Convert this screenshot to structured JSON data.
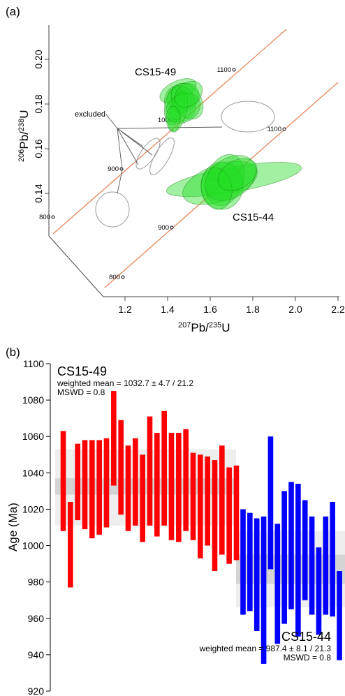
{
  "chart_data": [
    {
      "type": "scatter",
      "panel_label": "(a)",
      "x_axis": {
        "min": 1.2,
        "max": 2.2,
        "ticks": [
          "1.2",
          "1.4",
          "1.6",
          "1.8",
          "2.0",
          "2.2"
        ]
      },
      "y_axis": {
        "min": 0.14,
        "max": 0.2,
        "ticks": [
          "0.14",
          "0.16",
          "0.18",
          "0.20"
        ]
      },
      "concordia_ages": [
        {
          "curve": 1,
          "label": "800",
          "x": 1.19,
          "y": 0.133
        },
        {
          "curve": 1,
          "label": "900",
          "x": 1.39,
          "y": 0.15
        },
        {
          "curve": 1,
          "label": "1000",
          "x": 1.61,
          "y": 0.167
        },
        {
          "curve": 1,
          "label": "1100",
          "x": 1.84,
          "y": 0.186
        },
        {
          "curve": 2,
          "label": "800",
          "x": 1.19,
          "y": 0.133
        },
        {
          "curve": 2,
          "label": "900",
          "x": 1.42,
          "y": 0.15
        },
        {
          "curve": 2,
          "label": "1000",
          "x": 1.66,
          "y": 0.167
        },
        {
          "curve": 2,
          "label": "1100",
          "x": 1.95,
          "y": 0.186
        }
      ],
      "groups": [
        {
          "name": "CS15-49",
          "color": "#22dd22",
          "center_x": 1.45,
          "center_y": 0.17
        },
        {
          "name": "CS15-44",
          "color": "#22dd22",
          "center_x": 1.67,
          "center_y": 0.145
        }
      ],
      "annotation": "excluded",
      "excluded_color": "#999999"
    },
    {
      "type": "bar",
      "panel_label": "(b)",
      "ylabel": "Age (Ma)",
      "ylim": [
        920,
        1100
      ],
      "yticks": [
        "1100",
        "1080",
        "1060",
        "1040",
        "1020",
        "1000",
        "980",
        "960",
        "940",
        "920"
      ],
      "series": [
        {
          "name": "CS15-49",
          "color": "#ff0000",
          "stats_line1": "weighted mean = 1032.7 ± 4.7 / 21.2",
          "stats_line2": "MSWD = 0.8",
          "weighted_mean": 1032.7,
          "band_inner": [
            1028,
            1037
          ],
          "band_outer": [
            1011,
            1053
          ],
          "bars": [
            [
              1008,
              1063
            ],
            [
              977,
              1024
            ],
            [
              1014,
              1056
            ],
            [
              1009,
              1058
            ],
            [
              1004,
              1058
            ],
            [
              1006,
              1058
            ],
            [
              1010,
              1059
            ],
            [
              1033,
              1085
            ],
            [
              1017,
              1069
            ],
            [
              1008,
              1055
            ],
            [
              1011,
              1059
            ],
            [
              1002,
              1050
            ],
            [
              1011,
              1071
            ],
            [
              1005,
              1062
            ],
            [
              1011,
              1074
            ],
            [
              1003,
              1062
            ],
            [
              1002,
              1062
            ],
            [
              1008,
              1064
            ],
            [
              1003,
              1051
            ],
            [
              993,
              1050
            ],
            [
              1000,
              1049
            ],
            [
              986,
              1047
            ],
            [
              995,
              1055
            ],
            [
              990,
              1043
            ],
            [
              992,
              1044
            ]
          ]
        },
        {
          "name": "CS15-44",
          "color": "#0000ff",
          "stats_line1": "weighted mean = 987.4 ± 8.1 / 21.3",
          "stats_line2": "MSWD = 0.8",
          "weighted_mean": 987.4,
          "band_inner": [
            979,
            995
          ],
          "band_outer": [
            966,
            1008
          ],
          "bars": [
            [
              962,
              1020
            ],
            [
              964,
              1018
            ],
            [
              953,
              1015
            ],
            [
              935,
              1016
            ],
            [
              987,
              1060
            ],
            [
              946,
              1012
            ],
            [
              957,
              1030
            ],
            [
              965,
              1035
            ],
            [
              950,
              1034
            ],
            [
              970,
              1025
            ],
            [
              962,
              1016
            ],
            [
              951,
              999
            ],
            [
              962,
              1016
            ],
            [
              961,
              1024
            ],
            [
              937,
              986
            ]
          ]
        }
      ]
    }
  ]
}
